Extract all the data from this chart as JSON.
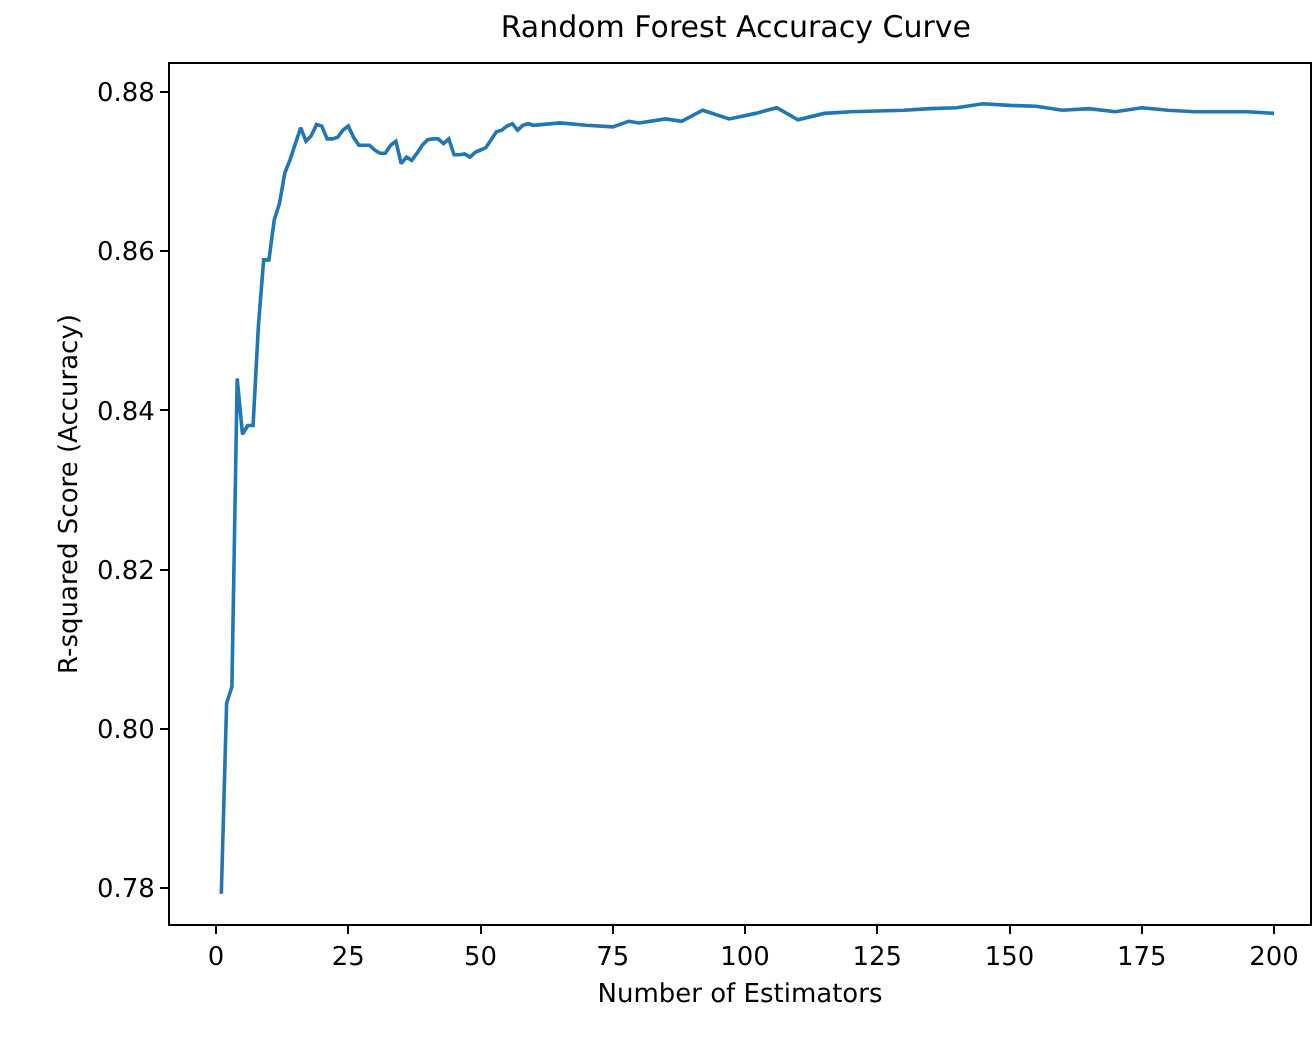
{
  "chart_data": {
    "type": "line",
    "title": "Random Forest Accuracy Curve",
    "xlabel": "Number of Estimators",
    "ylabel": "R-squared Score (Accuracy)",
    "x": [
      1,
      2,
      3,
      4,
      5,
      6,
      7,
      8,
      9,
      10,
      11,
      12,
      13,
      14,
      15,
      16,
      17,
      18,
      19,
      20,
      21,
      22,
      23,
      24,
      25,
      26,
      27,
      28,
      29,
      30,
      31,
      32,
      33,
      34,
      35,
      36,
      37,
      38,
      39,
      40,
      41,
      42,
      43,
      44,
      45,
      46,
      47,
      48,
      49,
      50,
      51,
      52,
      53,
      54,
      55,
      56,
      57,
      58,
      59,
      60,
      65,
      70,
      75,
      78,
      80,
      85,
      88,
      92,
      97,
      102,
      106,
      110,
      115,
      120,
      125,
      130,
      135,
      140,
      145,
      150,
      155,
      160,
      165,
      170,
      175,
      180,
      185,
      190,
      195,
      200
    ],
    "series": [
      {
        "color": "#1f77b4",
        "values": [
          0.7793,
          0.8032,
          0.8053,
          0.844,
          0.837,
          0.8381,
          0.8381,
          0.8505,
          0.8589,
          0.8589,
          0.8639,
          0.866,
          0.8698,
          0.8715,
          0.8735,
          0.8755,
          0.8738,
          0.8745,
          0.8759,
          0.8757,
          0.8741,
          0.8741,
          0.8743,
          0.8752,
          0.8757,
          0.8743,
          0.8733,
          0.8733,
          0.8733,
          0.8727,
          0.8723,
          0.8723,
          0.8733,
          0.8738,
          0.871,
          0.8718,
          0.8714,
          0.8723,
          0.8733,
          0.874,
          0.8741,
          0.8741,
          0.8735,
          0.8741,
          0.8721,
          0.8721,
          0.8722,
          0.8718,
          0.8724,
          0.8727,
          0.873,
          0.874,
          0.875,
          0.8752,
          0.8757,
          0.876,
          0.8752,
          0.8758,
          0.876,
          0.8758,
          0.8761,
          0.8758,
          0.8756,
          0.8763,
          0.8761,
          0.8766,
          0.8763,
          0.8777,
          0.8766,
          0.8773,
          0.878,
          0.8765,
          0.8773,
          0.8775,
          0.8776,
          0.8777,
          0.8779,
          0.878,
          0.8785,
          0.8783,
          0.8782,
          0.8777,
          0.8779,
          0.8775,
          0.878,
          0.8777,
          0.8775,
          0.8775,
          0.8775,
          0.8773
        ]
      }
    ],
    "xlim": [
      -8.7,
      206.8
    ],
    "ylim": [
      0.7755,
      0.8835
    ],
    "xticks": [
      0,
      25,
      50,
      75,
      100,
      125,
      150,
      175,
      200
    ],
    "yticks": [
      0.78,
      {
        "value": 0.8,
        "label": "0.80"
      },
      0.82,
      0.84,
      0.86,
      0.88
    ],
    "grid": false,
    "marker": "none",
    "line_style": "solid"
  }
}
